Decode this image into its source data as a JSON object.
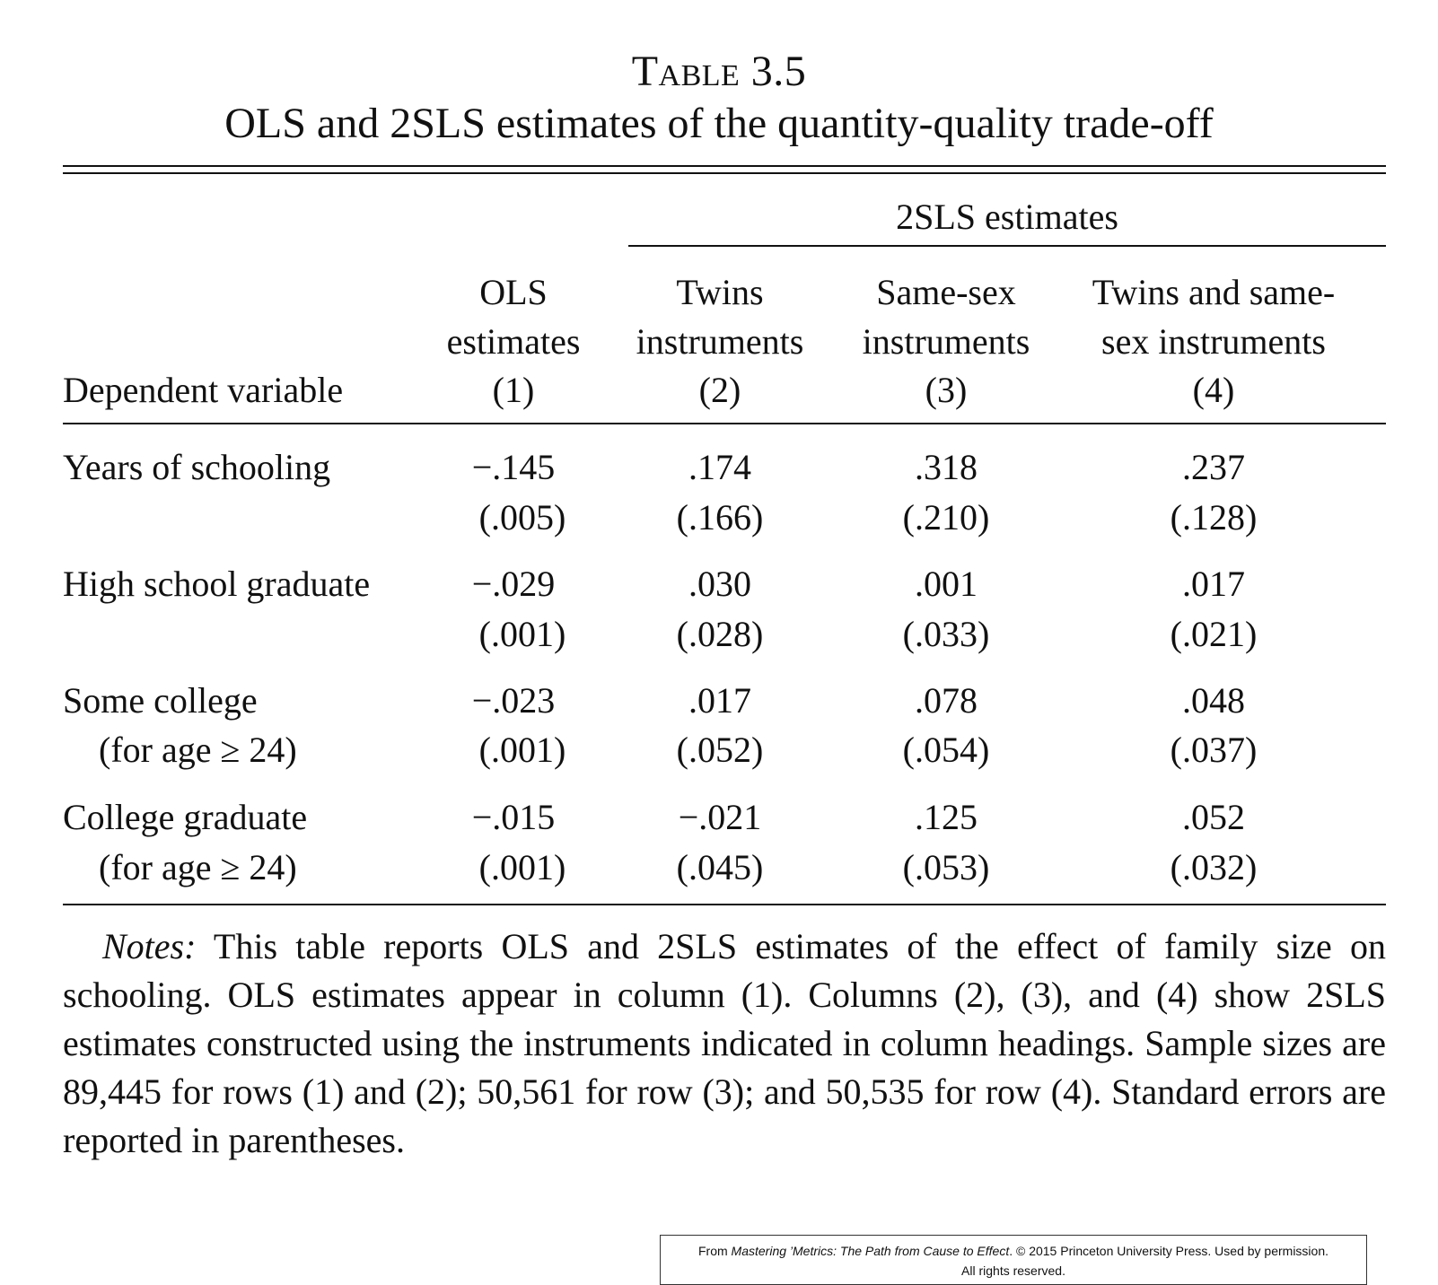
{
  "table": {
    "label_prefix": "T",
    "label_rest": "able",
    "label_number": " 3.5",
    "title": "OLS and 2SLS estimates of the quantity-quality trade-off",
    "spanner": "2SLS estimates",
    "stub_header": "Dependent variable",
    "columns": [
      {
        "line1": "OLS",
        "line2": "estimates",
        "num": "(1)"
      },
      {
        "line1": "Twins",
        "line2": "instruments",
        "num": "(2)"
      },
      {
        "line1": "Same-sex",
        "line2": "instruments",
        "num": "(3)"
      },
      {
        "line1": "Twins and same-",
        "line2": "sex instruments",
        "num": "(4)"
      }
    ],
    "rows": [
      {
        "label": "Years of schooling",
        "sublabel": "",
        "est": [
          "−.145",
          ".174",
          ".318",
          ".237"
        ],
        "se": [
          "(.005)",
          "(.166)",
          "(.210)",
          "(.128)"
        ]
      },
      {
        "label": "High school graduate",
        "sublabel": "",
        "est": [
          "−.029",
          ".030",
          ".001",
          ".017"
        ],
        "se": [
          "(.001)",
          "(.028)",
          "(.033)",
          "(.021)"
        ]
      },
      {
        "label": "Some college",
        "sublabel": "(for age ≥ 24)",
        "est": [
          "−.023",
          ".017",
          ".078",
          ".048"
        ],
        "se": [
          "(.001)",
          "(.052)",
          "(.054)",
          "(.037)"
        ]
      },
      {
        "label": "College graduate",
        "sublabel": "(for age ≥ 24)",
        "est": [
          "−.015",
          "−.021",
          ".125",
          ".052"
        ],
        "se": [
          "(.001)",
          "(.045)",
          "(.053)",
          "(.032)"
        ]
      }
    ],
    "notes_label": "Notes:",
    "notes_text": " This table reports OLS and 2SLS estimates of the effect of family size on schooling. OLS estimates appear in column (1). Columns (2), (3), and (4) show 2SLS estimates constructed using the instruments indicated in column headings. Sample sizes are 89,445 for rows (1) and (2); 50,561 for row (3); and 50,535 for row (4). Standard errors are reported in parentheses."
  },
  "credit": {
    "prefix": "From ",
    "book": "Mastering ’Metrics: The Path from Cause to Effect",
    "suffix": ". © 2015 Princeton University Press. Used by permission.",
    "line2": "All rights reserved."
  }
}
